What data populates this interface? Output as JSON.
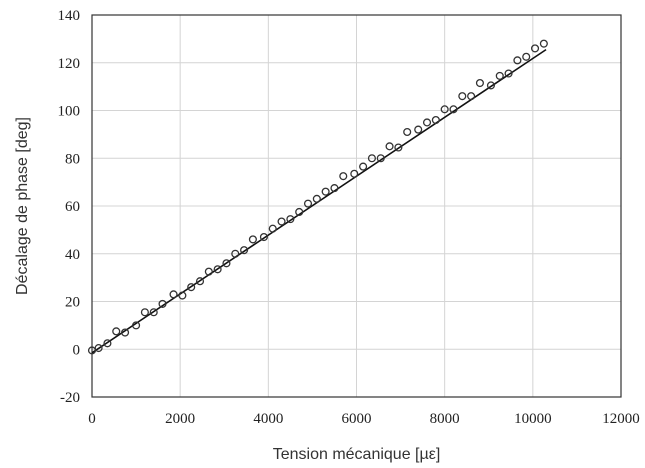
{
  "chart_data": {
    "type": "scatter",
    "xlabel": "Tension mécanique [µε]",
    "ylabel": "Décalage de phase [deg]",
    "xlim": [
      0,
      12000
    ],
    "ylim": [
      -20,
      140
    ],
    "xticks": [
      "0",
      "2000",
      "4000",
      "6000",
      "8000",
      "10000",
      "12000"
    ],
    "yticks": [
      "-20",
      "0",
      "20",
      "40",
      "60",
      "80",
      "100",
      "120",
      "140"
    ],
    "grid": true,
    "series": [
      {
        "marker": "circle",
        "x": [
          0,
          150,
          350,
          550,
          750,
          1000,
          1200,
          1400,
          1600,
          1850,
          2050,
          2250,
          2450,
          2650,
          2850,
          3050,
          3250,
          3450,
          3650,
          3900,
          4100,
          4300,
          4500,
          4700,
          4900,
          5100,
          5300,
          5500,
          5700,
          5950,
          6150,
          6350,
          6550,
          6750,
          6950,
          7150,
          7400,
          7600,
          7800,
          8000,
          8200,
          8400,
          8600,
          8800,
          9050,
          9250,
          9450,
          9650,
          9850,
          10050,
          10250
        ],
        "y": [
          -0.5,
          0.5,
          2.5,
          7.5,
          7,
          10,
          15.5,
          15.5,
          19,
          23,
          22.5,
          26,
          28.5,
          32.5,
          33.5,
          36,
          40,
          41.5,
          46,
          47,
          50.5,
          53.5,
          54.5,
          57.5,
          61,
          63,
          66,
          67.5,
          72.5,
          73.5,
          76.5,
          80,
          80,
          85,
          84.5,
          91,
          92,
          95,
          96,
          100.5,
          100.5,
          106,
          106,
          111.5,
          110.5,
          114.5,
          115.5,
          121,
          122.5,
          126,
          128
        ]
      },
      {
        "type": "line",
        "x": [
          0,
          10300
        ],
        "y": [
          -1.5,
          125.5
        ]
      }
    ]
  }
}
